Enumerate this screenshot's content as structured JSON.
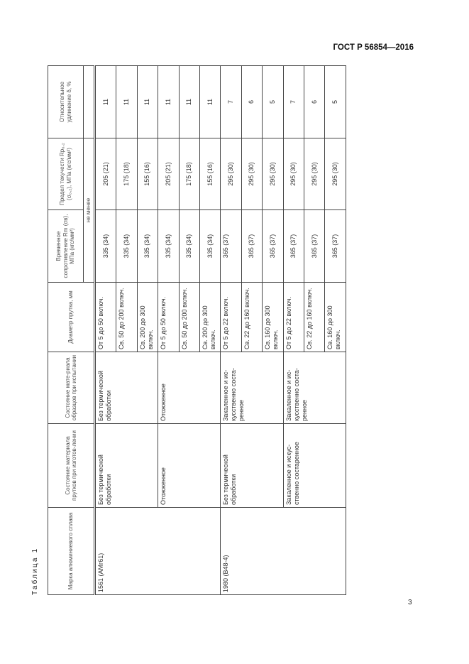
{
  "header": {
    "doc_id": "ГОСТ Р 56854—2016"
  },
  "caption": "Таблица 1",
  "page_number": "3",
  "table": {
    "columns": [
      "Марка алюминиевого сплава",
      "Состояние материала прутков при изготов-лении",
      "Состояние мате-риала образцов при испытании",
      "Диаметр прутка, мм",
      "Временное сопротивление Rm (σв), МПа (кгс/мм²)",
      "Предел текучести Rp₀,₂ (σ₀,₂), МПа (кгс/мм²)",
      "Относительное удлинение δ, %"
    ],
    "subheader": "не менее",
    "groups": [
      {
        "grade": "1561 (АМг61)",
        "subgroups": [
          {
            "manufacture": "Без термической обработки",
            "test": "Без термической обработки",
            "rows": [
              {
                "diameter": "От 5 до 50 включ.",
                "rm": "335 (34)",
                "rp": "205 (21)",
                "elongation": "11"
              },
              {
                "diameter": "Св. 50 до 200 включ.",
                "rm": "335 (34)",
                "rp": "175 (18)",
                "elongation": "11"
              },
              {
                "diameter": "Св. 200 до 300 включ.",
                "rm": "335 (34)",
                "rp": "155 (16)",
                "elongation": "11"
              }
            ]
          },
          {
            "manufacture": "Отожженное",
            "test": "Отожженное",
            "rows": [
              {
                "diameter": "От 5 до 50 включ.",
                "rm": "335 (34)",
                "rp": "205 (21)",
                "elongation": "11"
              },
              {
                "diameter": "Св. 50 до 200 включ.",
                "rm": "335 (34)",
                "rp": "175 (18)",
                "elongation": "11"
              },
              {
                "diameter": "Св. 200 до 300 включ.",
                "rm": "335 (34)",
                "rp": "155 (16)",
                "elongation": "11"
              }
            ]
          }
        ]
      },
      {
        "grade": "1980 (В48-4)",
        "subgroups": [
          {
            "manufacture": "Без термической обработки",
            "test": "Закаленное и ис-кусственно соста-ренное",
            "rows": [
              {
                "diameter": "От 5 до 22 включ.",
                "rm": "365 (37)",
                "rp": "295 (30)",
                "elongation": "7"
              },
              {
                "diameter": "Св. 22 до 160 включ.",
                "rm": "365 (37)",
                "rp": "295 (30)",
                "elongation": "6"
              },
              {
                "diameter": "Св. 160 до 300 включ.",
                "rm": "365 (37)",
                "rp": "295 (30)",
                "elongation": "5"
              }
            ]
          },
          {
            "manufacture": "Закаленное и искус-ственно состаренное",
            "test": "Закаленное и ис-кусственно соста-ренное",
            "rows": [
              {
                "diameter": "От 5 до 22 включ.",
                "rm": "365 (37)",
                "rp": "295 (30)",
                "elongation": "7"
              },
              {
                "diameter": "Св. 22 до 160 включ.",
                "rm": "365 (37)",
                "rp": "295 (30)",
                "elongation": "6"
              },
              {
                "diameter": "Св. 160 до 300 включ.",
                "rm": "365 (37)",
                "rp": "295 (30)",
                "elongation": "5"
              }
            ]
          }
        ]
      }
    ]
  }
}
